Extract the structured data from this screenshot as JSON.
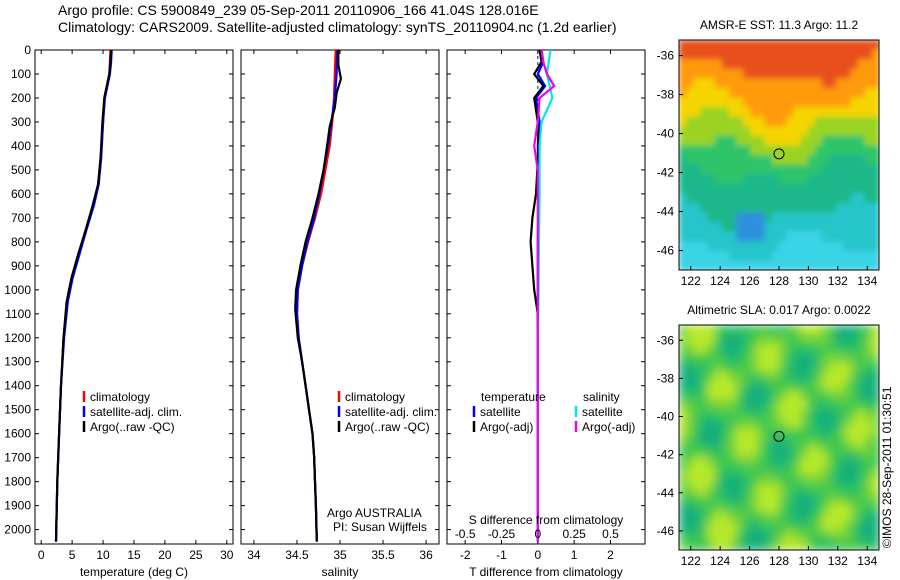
{
  "header": {
    "line1": "Argo profile: CS 5900849_239 05-Sep-2011 20110906_166 41.04S 128.016E",
    "line2": "Climatology: CARS2009. Satellite-adjusted climatology: synTS_20110904.nc (1.2d earlier)"
  },
  "colors": {
    "climatology": "#ff0000",
    "satellite": "#0000ff",
    "argo": "#000000",
    "sal_satellite": "#00e5ee",
    "sal_argo": "#ee00ee"
  },
  "chart_data": [
    {
      "type": "line",
      "id": "temperature",
      "xlabel": "temperature (deg C)",
      "xlim": [
        -1,
        31
      ],
      "xticks": [
        0,
        5,
        10,
        15,
        20,
        25,
        30
      ],
      "ylim": [
        2060,
        0
      ],
      "yticks": [
        0,
        100,
        200,
        300,
        400,
        500,
        600,
        700,
        800,
        900,
        1000,
        1100,
        1200,
        1300,
        1400,
        1500,
        1600,
        1700,
        1800,
        1900,
        2000
      ],
      "legend": [
        "climatology",
        "satellite-adj. clim.",
        "Argo(..raw -QC)"
      ],
      "series": [
        {
          "name": "climatology",
          "color": "#ff0000",
          "points": [
            [
              11.2,
              0
            ],
            [
              11.1,
              50
            ],
            [
              11.0,
              100
            ],
            [
              10.6,
              150
            ],
            [
              10.2,
              200
            ],
            [
              10.0,
              300
            ],
            [
              9.6,
              450
            ],
            [
              9.2,
              560
            ],
            [
              8.4,
              650
            ],
            [
              7.2,
              750
            ],
            [
              6.1,
              850
            ],
            [
              5.0,
              950
            ],
            [
              4.2,
              1050
            ],
            [
              3.6,
              1200
            ],
            [
              3.2,
              1400
            ],
            [
              2.9,
              1600
            ],
            [
              2.6,
              1800
            ],
            [
              2.4,
              2050
            ]
          ]
        },
        {
          "name": "satellite-adj. clim.",
          "color": "#0000ff",
          "points": [
            [
              11.4,
              0
            ],
            [
              11.3,
              50
            ],
            [
              11.1,
              100
            ],
            [
              10.7,
              150
            ],
            [
              10.3,
              200
            ],
            [
              10.0,
              300
            ],
            [
              9.7,
              450
            ],
            [
              9.3,
              560
            ],
            [
              8.5,
              650
            ],
            [
              7.3,
              750
            ],
            [
              6.2,
              850
            ],
            [
              5.1,
              950
            ],
            [
              4.3,
              1050
            ],
            [
              3.7,
              1200
            ],
            [
              3.2,
              1400
            ],
            [
              2.9,
              1600
            ],
            [
              2.6,
              1800
            ],
            [
              2.4,
              2050
            ]
          ]
        },
        {
          "name": "Argo(..raw -QC)",
          "color": "#000000",
          "points": [
            [
              11.3,
              0
            ],
            [
              11.2,
              50
            ],
            [
              11.0,
              100
            ],
            [
              10.6,
              150
            ],
            [
              10.2,
              200
            ],
            [
              9.9,
              300
            ],
            [
              9.6,
              450
            ],
            [
              9.2,
              560
            ],
            [
              8.3,
              650
            ],
            [
              7.2,
              750
            ],
            [
              6.0,
              850
            ],
            [
              4.9,
              950
            ],
            [
              4.1,
              1050
            ],
            [
              3.6,
              1200
            ],
            [
              3.2,
              1400
            ],
            [
              2.9,
              1600
            ],
            [
              2.6,
              1800
            ],
            [
              2.4,
              2050
            ]
          ]
        }
      ]
    },
    {
      "type": "line",
      "id": "salinity",
      "xlabel": "salinity",
      "xlim": [
        33.85,
        36.15
      ],
      "xticks": [
        34,
        34.5,
        35,
        35.5,
        36
      ],
      "ylim": [
        2060,
        0
      ],
      "legend": [
        "climatology",
        "satellite-adj. clim.",
        "Argo(..raw -QC)"
      ],
      "series": [
        {
          "name": "climatology",
          "color": "#ff0000",
          "points": [
            [
              34.95,
              0
            ],
            [
              34.94,
              100
            ],
            [
              34.93,
              200
            ],
            [
              34.91,
              300
            ],
            [
              34.88,
              400
            ],
            [
              34.83,
              500
            ],
            [
              34.78,
              600
            ],
            [
              34.71,
              700
            ],
            [
              34.63,
              800
            ],
            [
              34.56,
              900
            ],
            [
              34.51,
              1000
            ],
            [
              34.5,
              1100
            ],
            [
              34.52,
              1200
            ],
            [
              34.56,
              1300
            ],
            [
              34.6,
              1400
            ],
            [
              34.64,
              1500
            ],
            [
              34.68,
              1600
            ],
            [
              34.7,
              1700
            ],
            [
              34.71,
              1800
            ],
            [
              34.72,
              1900
            ],
            [
              34.73,
              2050
            ]
          ]
        },
        {
          "name": "satellite-adj. clim.",
          "color": "#0000ff",
          "points": [
            [
              34.97,
              0
            ],
            [
              34.96,
              100
            ],
            [
              34.94,
              200
            ],
            [
              34.9,
              300
            ],
            [
              34.86,
              400
            ],
            [
              34.81,
              500
            ],
            [
              34.76,
              600
            ],
            [
              34.7,
              700
            ],
            [
              34.62,
              800
            ],
            [
              34.56,
              900
            ],
            [
              34.51,
              1000
            ],
            [
              34.5,
              1100
            ],
            [
              34.52,
              1200
            ],
            [
              34.56,
              1300
            ],
            [
              34.6,
              1400
            ],
            [
              34.64,
              1500
            ],
            [
              34.68,
              1600
            ],
            [
              34.7,
              1700
            ],
            [
              34.71,
              1800
            ],
            [
              34.72,
              1900
            ],
            [
              34.73,
              2050
            ]
          ]
        },
        {
          "name": "Argo(..raw -QC)",
          "color": "#000000",
          "points": [
            [
              34.98,
              0
            ],
            [
              34.98,
              60
            ],
            [
              35.01,
              120
            ],
            [
              34.96,
              180
            ],
            [
              34.94,
              240
            ],
            [
              34.88,
              320
            ],
            [
              34.85,
              400
            ],
            [
              34.81,
              500
            ],
            [
              34.75,
              600
            ],
            [
              34.68,
              700
            ],
            [
              34.6,
              800
            ],
            [
              34.54,
              900
            ],
            [
              34.49,
              1000
            ],
            [
              34.48,
              1080
            ],
            [
              34.51,
              1200
            ],
            [
              34.56,
              1300
            ],
            [
              34.6,
              1400
            ],
            [
              34.64,
              1500
            ],
            [
              34.68,
              1600
            ],
            [
              34.7,
              1700
            ],
            [
              34.71,
              1800
            ],
            [
              34.72,
              1900
            ],
            [
              34.73,
              2050
            ]
          ]
        }
      ]
    },
    {
      "type": "line",
      "id": "difference",
      "xlabel": "T difference from climatology",
      "xlabel2": "S difference from climatology",
      "xlim": [
        -2.5,
        2.95
      ],
      "xticks": [
        -2,
        -1,
        0,
        1,
        2
      ],
      "xticks2": [
        -0.5,
        -0.25,
        0,
        0.25,
        0.5
      ],
      "xticks2_labels": [
        "-0.5",
        "-0.25",
        "0",
        "0.25",
        "0.5"
      ],
      "ylim": [
        2060,
        0
      ],
      "legend_headers": [
        "temperature",
        "salinity"
      ],
      "legend_temperature": [
        "satellite",
        "Argo(-adj)"
      ],
      "legend_salinity": [
        "satellite",
        "Argo(-adj)"
      ],
      "series": [
        {
          "name": "temperature satellite",
          "color": "#0000ff",
          "points": [
            [
              0.1,
              0
            ],
            [
              0.15,
              50
            ],
            [
              0.0,
              100
            ],
            [
              0.2,
              150
            ],
            [
              -0.05,
              200
            ],
            [
              0.05,
              300
            ],
            [
              0.0,
              400
            ],
            [
              0.02,
              600
            ],
            [
              0.0,
              800
            ],
            [
              0.0,
              1200
            ],
            [
              0.0,
              2050
            ]
          ]
        },
        {
          "name": "temperature Argo(-adj)",
          "color": "#000000",
          "points": [
            [
              0.05,
              0
            ],
            [
              0.1,
              50
            ],
            [
              -0.1,
              100
            ],
            [
              0.15,
              150
            ],
            [
              -0.1,
              200
            ],
            [
              0.0,
              300
            ],
            [
              0.02,
              400
            ],
            [
              -0.05,
              600
            ],
            [
              -0.15,
              700
            ],
            [
              -0.2,
              800
            ],
            [
              -0.15,
              900
            ],
            [
              -0.1,
              1000
            ],
            [
              0.0,
              1100
            ],
            [
              0.0,
              1200
            ],
            [
              0.0,
              2050
            ]
          ]
        },
        {
          "name": "salinity satellite",
          "color": "#00e5ee",
          "points": [
            [
              0.35,
              0
            ],
            [
              0.25,
              100
            ],
            [
              0.4,
              200
            ],
            [
              0.1,
              300
            ],
            [
              0.05,
              400
            ],
            [
              0.05,
              600
            ],
            [
              0.03,
              800
            ],
            [
              0.02,
              1000
            ],
            [
              0.0,
              1200
            ],
            [
              0.0,
              2050
            ]
          ]
        },
        {
          "name": "salinity Argo(-adj)",
          "color": "#ee00ee",
          "points": [
            [
              0.1,
              0
            ],
            [
              0.15,
              50
            ],
            [
              0.25,
              100
            ],
            [
              0.45,
              150
            ],
            [
              0.05,
              200
            ],
            [
              0.0,
              300
            ],
            [
              -0.1,
              400
            ],
            [
              0.0,
              500
            ],
            [
              0.0,
              700
            ],
            [
              0.0,
              2050
            ]
          ]
        }
      ]
    },
    {
      "type": "heatmap",
      "id": "sst-map",
      "title": "AMSR-E SST: 11.3 Argo: 11.2",
      "xlim": [
        121.2,
        134.8
      ],
      "ylim": [
        -47,
        -35.2
      ],
      "xticks": [
        122,
        124,
        126,
        128,
        130,
        132,
        134
      ],
      "yticks": [
        -36,
        -38,
        -40,
        -42,
        -44,
        -46
      ],
      "marker": {
        "lon": 128.0,
        "lat": -41.04
      }
    },
    {
      "type": "heatmap",
      "id": "sla-map",
      "title": "Altimetric SLA: 0.017 Argo: 0.0022",
      "xlim": [
        121.2,
        134.8
      ],
      "ylim": [
        -47,
        -35.2
      ],
      "xticks": [
        122,
        124,
        126,
        128,
        130,
        132,
        134
      ],
      "yticks": [
        -36,
        -38,
        -40,
        -42,
        -44,
        -46
      ],
      "marker": {
        "lon": 128.0,
        "lat": -41.04
      }
    }
  ],
  "annotations": {
    "operator": "Argo AUSTRALIA",
    "pi": "PI: Susan Wijffels",
    "credit": "©IMOS 28-Sep-2011 01:30:51"
  }
}
